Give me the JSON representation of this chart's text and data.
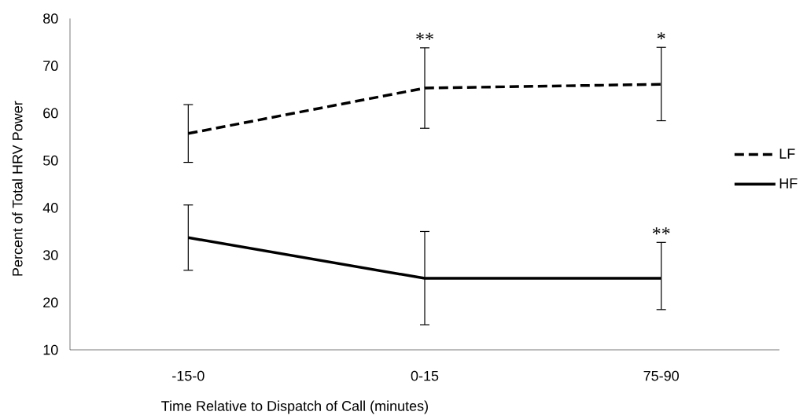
{
  "chart_data": {
    "type": "line",
    "xlabel": "Time Relative to Dispatch of Call (minutes)",
    "ylabel": "Percent of Total HRV Power",
    "categories": [
      "-15-0",
      "0-15",
      "75-90"
    ],
    "series": [
      {
        "name": "LF",
        "color": "#000000",
        "line_style": "dashed",
        "values": [
          55.7,
          65.3,
          66.1
        ],
        "errors": [
          [
            49.6,
            61.8
          ],
          [
            56.8,
            73.8
          ],
          [
            58.4,
            73.9
          ]
        ]
      },
      {
        "name": "HF",
        "color": "#000000",
        "line_style": "solid",
        "values": [
          33.7,
          25.1,
          25.1
        ],
        "errors": [
          [
            26.8,
            40.6
          ],
          [
            15.3,
            35.0
          ],
          [
            18.5,
            32.7
          ]
        ]
      }
    ],
    "ylim": [
      10,
      80
    ],
    "yticks": [
      10,
      20,
      30,
      40,
      50,
      60,
      70,
      80
    ],
    "grid": false,
    "legend": "right",
    "marker": "none",
    "annotations": [
      {
        "text": "**",
        "x": "0-15",
        "y": 65.3
      },
      {
        "text": "*",
        "x": "75-90",
        "y": 66.1
      },
      {
        "text": "**",
        "x": "75-90",
        "y": 25.1
      }
    ]
  }
}
